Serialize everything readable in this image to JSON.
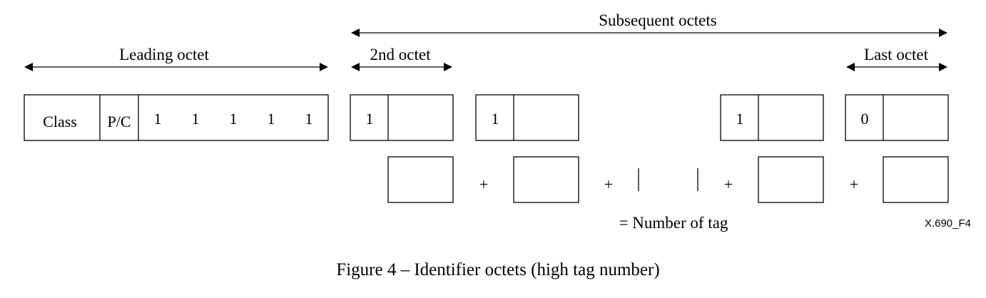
{
  "labels": {
    "subsequent_octets": "Subsequent octets",
    "leading_octet": "Leading octet",
    "second_octet": "2nd octet",
    "last_octet": "Last octet"
  },
  "leading_octet": {
    "class": "Class",
    "pc": "P/C",
    "tag_bits": [
      "1",
      "1",
      "1",
      "1",
      "1"
    ]
  },
  "subsequent_octets": {
    "continuation_bits": [
      "1",
      "1",
      "1",
      "0"
    ]
  },
  "sum_row": {
    "operators": [
      "+",
      "+",
      "+",
      "+"
    ],
    "result": "= Number of tag"
  },
  "figure_id": "X.690_F4",
  "caption": "Figure 4 – Identifier octets (high tag number)"
}
